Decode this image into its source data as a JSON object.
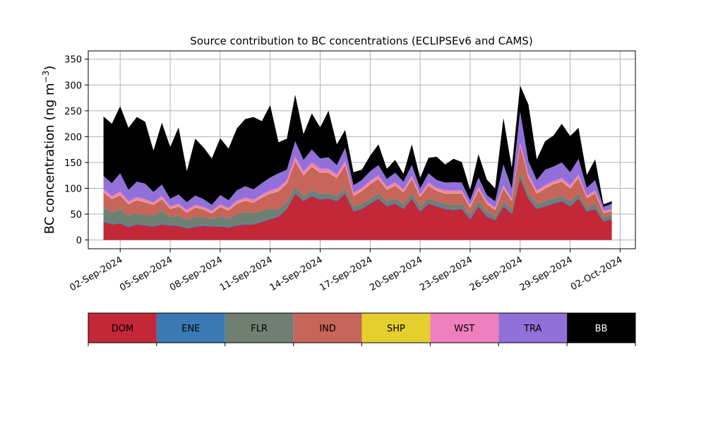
{
  "chart_data": {
    "type": "area",
    "stacked": true,
    "title": "Source contribution to BC concentrations (ECLIPSEv6 and CAMS)",
    "ylabel_main": "BC concentration (ng m",
    "ylabel_sup": "−3",
    "ylabel_close": ")",
    "ylim": [
      -17,
      366
    ],
    "yticks": [
      0,
      50,
      100,
      150,
      200,
      250,
      300,
      350
    ],
    "xlim": [
      "2024-08-31T02:00",
      "2024-10-02T22:00"
    ],
    "x_ticks": [
      "2024-09-02",
      "2024-09-05",
      "2024-09-08",
      "2024-09-11",
      "2024-09-14",
      "2024-09-17",
      "2024-09-20",
      "2024-09-23",
      "2024-09-26",
      "2024-09-29",
      "2024-10-02"
    ],
    "x_tick_labels": [
      "02-Sep-2024",
      "05-Sep-2024",
      "08-Sep-2024",
      "11-Sep-2024",
      "14-Sep-2024",
      "17-Sep-2024",
      "20-Sep-2024",
      "23-Sep-2024",
      "26-Sep-2024",
      "29-Sep-2024",
      "02-Oct-2024"
    ],
    "grid": true,
    "legend_position": "bottom",
    "x": [
      "2024-09-01T00:00",
      "2024-09-01T12:00",
      "2024-09-02T00:00",
      "2024-09-02T12:00",
      "2024-09-03T00:00",
      "2024-09-03T12:00",
      "2024-09-04T00:00",
      "2024-09-04T12:00",
      "2024-09-05T00:00",
      "2024-09-05T12:00",
      "2024-09-06T00:00",
      "2024-09-06T12:00",
      "2024-09-07T00:00",
      "2024-09-07T12:00",
      "2024-09-08T00:00",
      "2024-09-08T12:00",
      "2024-09-09T00:00",
      "2024-09-09T12:00",
      "2024-09-10T00:00",
      "2024-09-10T12:00",
      "2024-09-11T00:00",
      "2024-09-11T12:00",
      "2024-09-12T00:00",
      "2024-09-12T12:00",
      "2024-09-13T00:00",
      "2024-09-13T12:00",
      "2024-09-14T00:00",
      "2024-09-14T12:00",
      "2024-09-15T00:00",
      "2024-09-15T12:00",
      "2024-09-16T00:00",
      "2024-09-16T12:00",
      "2024-09-17T00:00",
      "2024-09-17T12:00",
      "2024-09-18T00:00",
      "2024-09-18T12:00",
      "2024-09-19T00:00",
      "2024-09-19T12:00",
      "2024-09-20T00:00",
      "2024-09-20T12:00",
      "2024-09-21T00:00",
      "2024-09-21T12:00",
      "2024-09-22T00:00",
      "2024-09-22T12:00",
      "2024-09-23T00:00",
      "2024-09-23T12:00",
      "2024-09-24T00:00",
      "2024-09-24T12:00",
      "2024-09-25T00:00",
      "2024-09-25T12:00",
      "2024-09-26T00:00",
      "2024-09-26T12:00",
      "2024-09-27T00:00",
      "2024-09-27T12:00",
      "2024-09-28T00:00",
      "2024-09-28T12:00",
      "2024-09-29T00:00",
      "2024-09-29T12:00",
      "2024-09-30T00:00",
      "2024-09-30T12:00",
      "2024-10-01T00:00",
      "2024-10-01T12:00"
    ],
    "series": [
      {
        "name": "DOM",
        "color": "#c22837",
        "values": [
          35,
          30,
          32,
          25,
          30,
          28,
          26,
          30,
          28,
          27,
          22,
          25,
          27,
          26,
          26,
          24,
          28,
          30,
          30,
          35,
          40,
          45,
          60,
          90,
          75,
          85,
          78,
          80,
          75,
          90,
          55,
          60,
          70,
          80,
          65,
          70,
          60,
          80,
          55,
          70,
          65,
          60,
          58,
          60,
          40,
          65,
          45,
          38,
          65,
          50,
          120,
          80,
          60,
          65,
          70,
          75,
          65,
          80,
          55,
          60,
          36,
          40
        ]
      },
      {
        "name": "ENE",
        "color": "#3a79b4",
        "values": [
          2,
          2,
          2,
          2,
          2,
          2,
          2,
          2,
          2,
          2,
          2,
          2,
          2,
          2,
          2,
          2,
          2,
          2,
          2,
          2,
          2,
          2,
          2,
          2,
          2,
          2,
          2,
          2,
          2,
          2,
          2,
          2,
          2,
          2,
          2,
          2,
          2,
          2,
          2,
          2,
          2,
          2,
          2,
          2,
          2,
          2,
          2,
          2,
          2,
          2,
          2,
          2,
          2,
          2,
          2,
          2,
          2,
          2,
          2,
          2,
          2,
          2
        ]
      },
      {
        "name": "FLR",
        "color": "#6e8072",
        "values": [
          25,
          22,
          25,
          20,
          20,
          18,
          20,
          25,
          15,
          18,
          15,
          18,
          15,
          12,
          18,
          15,
          20,
          22,
          20,
          20,
          18,
          12,
          12,
          10,
          8,
          10,
          10,
          8,
          8,
          8,
          8,
          8,
          8,
          8,
          8,
          8,
          8,
          8,
          8,
          8,
          8,
          8,
          8,
          8,
          8,
          8,
          8,
          6,
          8,
          8,
          10,
          8,
          8,
          8,
          8,
          8,
          8,
          8,
          6,
          8,
          6,
          6
        ]
      },
      {
        "name": "IND",
        "color": "#c7655a",
        "values": [
          30,
          25,
          28,
          22,
          25,
          25,
          20,
          22,
          15,
          18,
          14,
          18,
          15,
          12,
          18,
          16,
          20,
          22,
          20,
          25,
          30,
          35,
          35,
          50,
          40,
          45,
          40,
          40,
          35,
          45,
          20,
          25,
          28,
          28,
          22,
          25,
          22,
          28,
          18,
          25,
          20,
          20,
          22,
          20,
          12,
          22,
          15,
          12,
          25,
          15,
          50,
          30,
          20,
          25,
          28,
          28,
          25,
          30,
          18,
          20,
          8,
          8
        ]
      },
      {
        "name": "SHP",
        "color": "#e5cf2d",
        "values": [
          1,
          1,
          1,
          1,
          1,
          1,
          1,
          1,
          1,
          1,
          1,
          1,
          1,
          1,
          1,
          1,
          1,
          1,
          1,
          1,
          1,
          1,
          1,
          1,
          1,
          1,
          1,
          1,
          1,
          1,
          1,
          1,
          1,
          1,
          1,
          1,
          1,
          1,
          1,
          1,
          1,
          1,
          1,
          1,
          1,
          1,
          1,
          1,
          1,
          1,
          1,
          1,
          1,
          1,
          1,
          1,
          1,
          1,
          1,
          1,
          1,
          1
        ]
      },
      {
        "name": "WST",
        "color": "#f07fbf",
        "values": [
          6,
          5,
          6,
          5,
          5,
          5,
          4,
          5,
          4,
          4,
          4,
          4,
          4,
          3,
          4,
          4,
          5,
          5,
          5,
          5,
          5,
          6,
          6,
          8,
          7,
          7,
          7,
          7,
          6,
          7,
          5,
          5,
          6,
          6,
          5,
          6,
          5,
          6,
          4,
          5,
          5,
          5,
          5,
          5,
          4,
          5,
          4,
          4,
          5,
          4,
          6,
          6,
          5,
          5,
          5,
          6,
          5,
          6,
          4,
          5,
          3,
          3
        ]
      },
      {
        "name": "TRA",
        "color": "#9270d9",
        "values": [
          25,
          25,
          35,
          22,
          30,
          30,
          20,
          22,
          15,
          18,
          15,
          18,
          15,
          12,
          18,
          15,
          20,
          22,
          20,
          22,
          25,
          28,
          20,
          30,
          22,
          25,
          20,
          22,
          18,
          25,
          15,
          15,
          18,
          20,
          15,
          18,
          15,
          20,
          12,
          18,
          15,
          15,
          16,
          15,
          10,
          18,
          12,
          12,
          40,
          20,
          60,
          25,
          20,
          30,
          28,
          30,
          25,
          30,
          15,
          20,
          8,
          10
        ]
      },
      {
        "name": "BB",
        "color": "#000000",
        "values": [
          115,
          115,
          130,
          120,
          125,
          120,
          80,
          120,
          100,
          130,
          60,
          110,
          100,
          90,
          110,
          100,
          120,
          130,
          140,
          120,
          140,
          60,
          60,
          90,
          50,
          70,
          60,
          90,
          40,
          35,
          25,
          20,
          30,
          40,
          20,
          25,
          15,
          40,
          20,
          30,
          45,
          35,
          45,
          40,
          20,
          45,
          30,
          25,
          90,
          40,
          50,
          110,
          40,
          55,
          60,
          75,
          70,
          60,
          25,
          40,
          5,
          5
        ]
      }
    ]
  }
}
